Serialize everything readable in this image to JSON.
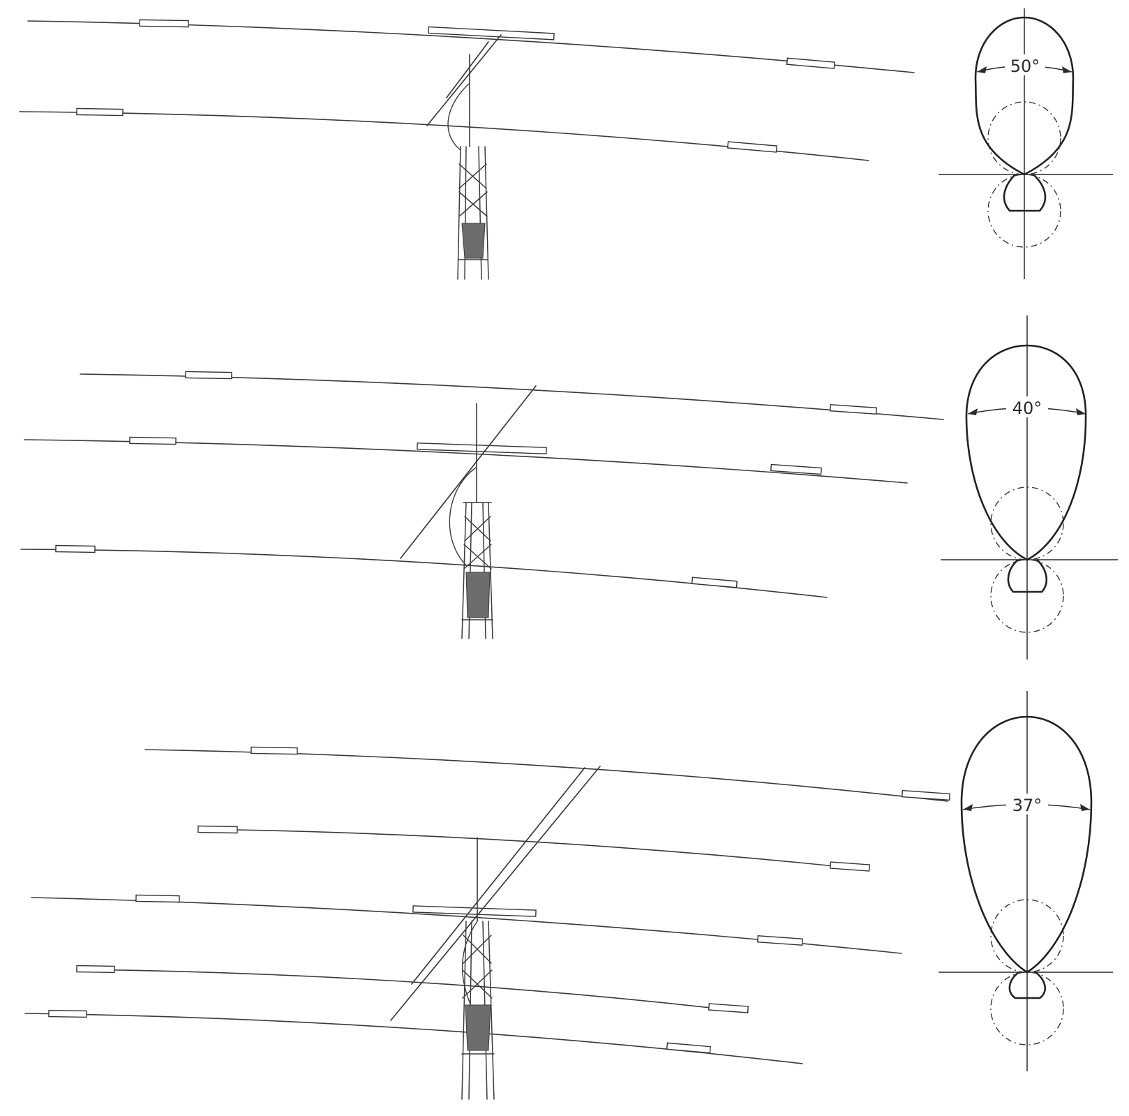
{
  "antennas": [
    {
      "element_count": 2,
      "pattern": {
        "beamwidth_label": "50°",
        "beamwidth_deg": 50
      }
    },
    {
      "element_count": 3,
      "pattern": {
        "beamwidth_label": "40°",
        "beamwidth_deg": 40
      }
    },
    {
      "element_count": 5,
      "pattern": {
        "beamwidth_label": "37°",
        "beamwidth_deg": 37
      }
    }
  ],
  "icons": {
    "antenna": "yagi-antenna-drawing",
    "pattern": "radiation-pattern-polar-plot",
    "reference": "dash-dot-reference-circle"
  },
  "colors": {
    "ink": "#3a3a3a",
    "background": "#ffffff"
  }
}
